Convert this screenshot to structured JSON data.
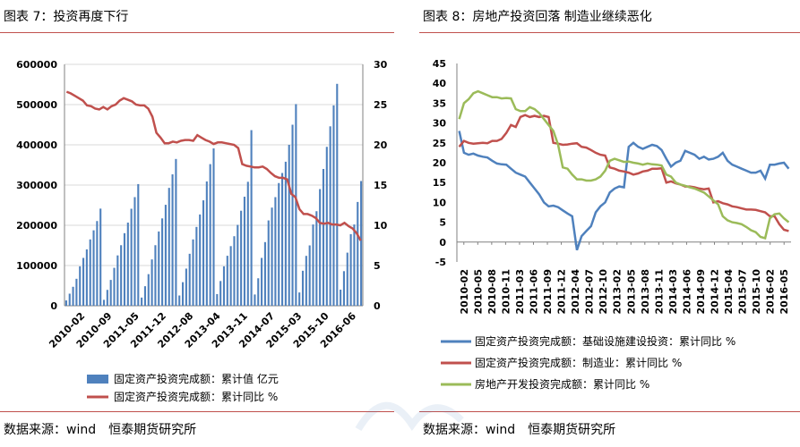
{
  "left": {
    "title": "图表 7：投资再度下行",
    "source": "数据来源：wind　恒泰期货研究所",
    "chart_data": {
      "type": "bar+line",
      "x_tick_labels": [
        "2010-02",
        "2010-09",
        "2011-05",
        "2011-12",
        "2012-08",
        "2013-04",
        "2013-11",
        "2014-07",
        "2015-03",
        "2015-10",
        "2016-06"
      ],
      "y_left": {
        "min": 0,
        "max": 600000,
        "ticks": [
          0,
          100000,
          200000,
          300000,
          400000,
          500000,
          600000
        ]
      },
      "y_right": {
        "min": 0,
        "max": 30,
        "ticks": [
          0,
          5,
          10,
          15,
          20,
          25,
          30
        ]
      },
      "series": [
        {
          "name": "固定资产投资完成额：累计值 亿元",
          "type": "bar",
          "axis": "left",
          "color": "#4f81bd",
          "values": [
            13242,
            30044,
            47124,
            67036,
            98005,
            118917,
            140133,
            164876,
            187519,
            210556,
            241431,
            14701,
            39465,
            64200,
            94264,
            125143,
            150510,
            180390,
            206711,
            241140,
            270007,
            302396,
            20357,
            48557,
            78555,
            115148,
            150519,
            184613,
            217126,
            250946,
            293021,
            326609,
            364835,
            25502,
            58620,
            92323,
            129215,
            164921,
            195960,
            226876,
            262035,
            309011,
            352022,
            391148,
            29037,
            61480,
            98009,
            124211,
            148208,
            172860,
            201054,
            236185,
            271022,
            308131,
            436528,
            28000,
            68322,
            118920,
            158221,
            212100,
            243970,
            270000,
            305000,
            330000,
            358000,
            400000,
            450000,
            501265,
            33000,
            87000,
            124000,
            150000,
            202000,
            235000,
            290000,
            340000,
            395000,
            446000,
            498000,
            551590,
            40000,
            86000,
            132000,
            178000,
            202000,
            258000,
            310000
          ]
        },
        {
          "name": "固定资产投资完成额：累计同比 %",
          "type": "line",
          "axis": "right",
          "color": "#c0504d",
          "values": [
            26.6,
            26.4,
            26.1,
            25.8,
            25.5,
            24.9,
            24.8,
            24.5,
            24.4,
            24.7,
            24.4,
            24.8,
            25.0,
            25.5,
            25.8,
            25.6,
            25.4,
            25.0,
            24.9,
            24.9,
            24.5,
            23.5,
            21.5,
            20.9,
            20.2,
            20.2,
            20.4,
            20.3,
            20.5,
            20.6,
            20.6,
            20.5,
            21.2,
            20.9,
            20.6,
            20.4,
            20.1,
            20.3,
            20.3,
            20.2,
            20.1,
            20.0,
            19.6,
            17.6,
            17.4,
            17.3,
            17.2,
            17.2,
            17.3,
            17.0,
            16.5,
            16.1,
            15.9,
            15.9,
            15.7,
            13.9,
            13.5,
            12.0,
            11.4,
            11.4,
            11.2,
            10.9,
            10.3,
            10.2,
            10.3,
            10.1,
            10.1,
            10.0,
            10.3,
            9.9,
            9.6,
            9.0,
            8.1
          ]
        }
      ]
    },
    "legend": [
      "固定资产投资完成额：累计值 亿元",
      "固定资产投资完成额：累计同比 %"
    ]
  },
  "right": {
    "title": "图表 8：房地产投资回落 制造业继续恶化",
    "source": "数据来源：wind　恒泰期货研究所",
    "chart_data": {
      "type": "line",
      "x_tick_labels": [
        "2010-02",
        "2010-05",
        "2010-08",
        "2010-11",
        "2011-03",
        "2011-06",
        "2011-09",
        "2011-12",
        "2012-04",
        "2012-07",
        "2012-10",
        "2013-02",
        "2013-05",
        "2013-08",
        "2013-11",
        "2014-03",
        "2014-06",
        "2014-09",
        "2014-12",
        "2015-04",
        "2015-07",
        "2015-10",
        "2016-02",
        "2016-05"
      ],
      "y": {
        "min": -5,
        "max": 45,
        "ticks": [
          -5,
          0,
          5,
          10,
          15,
          20,
          25,
          30,
          35,
          40,
          45
        ]
      },
      "series": [
        {
          "name": "固定资产投资完成额：基础设施建设投资：累计同比 %",
          "color": "#4f81bd",
          "values": [
            28.0,
            22.5,
            22.0,
            22.3,
            21.8,
            21.5,
            21.3,
            20.5,
            19.8,
            19.6,
            19.5,
            18.5,
            17.5,
            17.0,
            16.5,
            15.0,
            13.5,
            12.0,
            10.0,
            9.0,
            9.2,
            8.8,
            8.0,
            7.2,
            6.5,
            -2.0,
            1.5,
            2.8,
            4.0,
            7.5,
            9.0,
            10.0,
            12.5,
            13.5,
            14.0,
            13.8,
            24.0,
            25.0,
            24.0,
            23.5,
            24.0,
            24.5,
            24.2,
            23.2,
            21.0,
            19.0,
            20.0,
            20.5,
            23.0,
            22.5,
            22.0,
            21.0,
            21.5,
            20.8,
            21.0,
            21.5,
            22.5,
            20.5,
            19.5,
            19.0,
            18.5,
            18.0,
            17.5,
            17.5,
            18.0,
            16.0,
            19.5,
            19.5,
            19.8,
            20.0,
            18.5
          ]
        },
        {
          "name": "固定资产投资完成额：制造业：累计同比 %",
          "color": "#c0504d",
          "values": [
            24.0,
            25.5,
            25.0,
            24.8,
            24.9,
            25.0,
            24.9,
            25.5,
            25.5,
            26.0,
            27.5,
            29.5,
            29.0,
            31.5,
            32.0,
            31.5,
            31.8,
            31.5,
            31.8,
            31.5,
            25.0,
            24.8,
            24.5,
            24.6,
            24.8,
            24.9,
            24.0,
            23.8,
            23.2,
            22.5,
            22.0,
            21.8,
            18.8,
            18.5,
            18.0,
            17.8,
            17.5,
            17.0,
            17.3,
            17.8,
            18.0,
            18.5,
            18.5,
            18.6,
            15.0,
            15.3,
            14.8,
            14.5,
            14.0,
            14.0,
            13.8,
            13.5,
            13.3,
            13.5,
            10.0,
            10.3,
            9.8,
            9.5,
            9.0,
            8.8,
            8.5,
            8.2,
            8.2,
            8.1,
            7.8,
            7.5,
            6.5,
            6.5,
            4.5,
            3.1,
            2.8
          ]
        },
        {
          "name": "房地产开发投资完成额：累计同比 %",
          "color": "#9bbb59",
          "values": [
            31.0,
            35.0,
            36.0,
            37.5,
            38.0,
            37.5,
            37.0,
            36.5,
            36.5,
            36.2,
            36.3,
            36.2,
            33.5,
            33.0,
            33.0,
            34.0,
            33.5,
            32.5,
            31.0,
            29.5,
            28.0,
            24.5,
            18.8,
            18.5,
            17.0,
            15.8,
            15.8,
            15.5,
            15.5,
            15.8,
            16.5,
            18.0,
            20.5,
            21.0,
            20.6,
            20.2,
            20.3,
            20.0,
            19.8,
            19.5,
            19.8,
            19.6,
            19.5,
            19.3,
            17.0,
            16.5,
            15.0,
            14.5,
            14.2,
            13.8,
            13.5,
            13.0,
            12.5,
            11.5,
            10.5,
            9.5,
            6.5,
            5.5,
            5.0,
            4.8,
            4.5,
            3.8,
            3.0,
            2.5,
            1.3,
            1.0,
            6.0,
            7.0,
            7.2,
            6.0,
            5.0
          ]
        }
      ]
    },
    "legend": [
      "固定资产投资完成额：基础设施建设投资：累计同比 %",
      "固定资产投资完成额：制造业：累计同比 %",
      "房地产开发投资完成额：累计同比 %"
    ]
  }
}
